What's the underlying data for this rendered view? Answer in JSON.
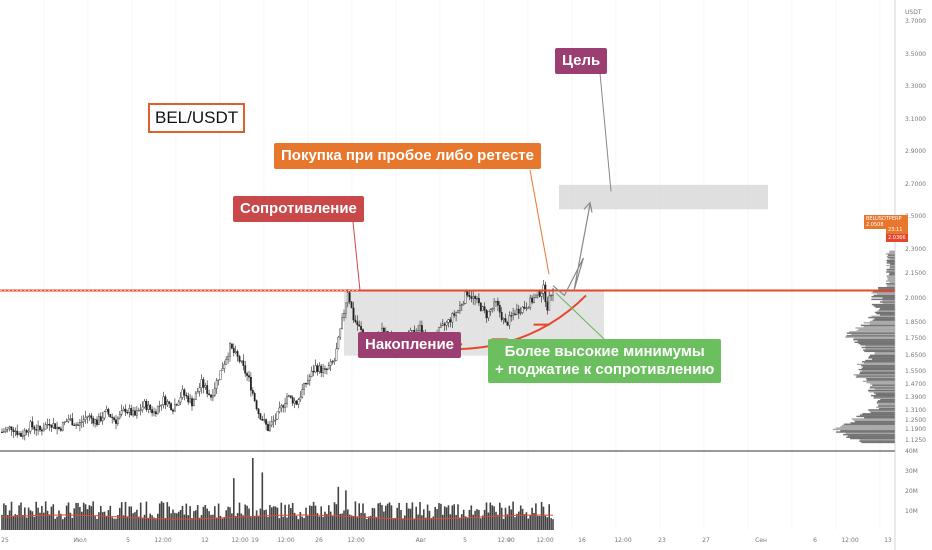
{
  "symbol": "BEL/USDT",
  "colors": {
    "resistance": "#c9494a",
    "buy": "#e8772e",
    "goal": "#9b3f72",
    "accumulation": "#9b3f72",
    "higher_lows": "#6cbf5f",
    "zone": "#d9d9d9",
    "price_line": "#e8462a"
  },
  "annotations": {
    "resistance": "Сопротивление",
    "buy": "Покупка при пробое либо ретесте",
    "goal": "Цель",
    "accumulation": "Накопление",
    "higher_lows_1": "Более высокие минимумы",
    "higher_lows_2": "+ поджатие к сопротивлению"
  },
  "price_axis": [
    "3.7000",
    "3.5000",
    "3.3000",
    "3.1000",
    "2.9000",
    "2.7000",
    "2.5000",
    "2.3000",
    "2.1500",
    "2.0000",
    "1.8500",
    "1.7500",
    "1.6500",
    "1.5500",
    "1.4700",
    "1.3900",
    "1.3100",
    "1.2500",
    "1.1900",
    "1.1250"
  ],
  "price_axis_top": "USDT",
  "price_tag": {
    "symbol": "BELUSDTPERP",
    "price": "2.0508",
    "countdown": "23:11",
    "low": "2.0366"
  },
  "volume_axis": [
    "40M",
    "30M",
    "20M",
    "10M"
  ],
  "time_axis": [
    "25",
    "Июл",
    "5",
    "12:00",
    "12",
    "12:00",
    "19",
    "12:00",
    "26",
    "12:00",
    "Авг",
    "5",
    "12:00",
    "9",
    "12:00",
    "16",
    "12:00",
    "23",
    "27",
    "Сен",
    "6",
    "12:00",
    "13"
  ],
  "chart_data": {
    "type": "candlestick",
    "symbol": "BEL/USDT",
    "price_range": [
      1.1,
      3.8
    ],
    "last_price": 2.0508,
    "resistance_level": 2.05,
    "accumulation_zone": {
      "low": 1.65,
      "high": 2.05
    },
    "target_zone": {
      "low": 2.55,
      "high": 2.7
    },
    "close_path": [
      [
        0,
        1.18
      ],
      [
        5,
        1.21
      ],
      [
        10,
        1.16
      ],
      [
        15,
        1.22
      ],
      [
        20,
        1.19
      ],
      [
        25,
        1.24
      ],
      [
        30,
        1.2
      ],
      [
        35,
        1.26
      ],
      [
        40,
        1.22
      ],
      [
        45,
        1.28
      ],
      [
        50,
        1.24
      ],
      [
        55,
        1.3
      ],
      [
        60,
        1.25
      ],
      [
        65,
        1.32
      ],
      [
        70,
        1.28
      ],
      [
        75,
        1.35
      ],
      [
        80,
        1.3
      ],
      [
        85,
        1.38
      ],
      [
        90,
        1.33
      ],
      [
        95,
        1.42
      ],
      [
        100,
        1.36
      ],
      [
        105,
        1.48
      ],
      [
        110,
        1.4
      ],
      [
        115,
        1.55
      ],
      [
        120,
        1.7
      ],
      [
        125,
        1.62
      ],
      [
        130,
        1.5
      ],
      [
        135,
        1.3
      ],
      [
        140,
        1.2
      ],
      [
        145,
        1.28
      ],
      [
        150,
        1.4
      ],
      [
        155,
        1.36
      ],
      [
        160,
        1.48
      ],
      [
        165,
        1.58
      ],
      [
        170,
        1.55
      ],
      [
        175,
        1.62
      ],
      [
        180,
        1.92
      ],
      [
        182,
        2.05
      ],
      [
        185,
        1.88
      ],
      [
        190,
        1.78
      ],
      [
        195,
        1.72
      ],
      [
        200,
        1.8
      ],
      [
        205,
        1.75
      ],
      [
        210,
        1.7
      ],
      [
        215,
        1.78
      ],
      [
        220,
        1.82
      ],
      [
        225,
        1.74
      ],
      [
        230,
        1.8
      ],
      [
        235,
        1.86
      ],
      [
        240,
        1.93
      ],
      [
        245,
        2.04
      ],
      [
        250,
        1.98
      ],
      [
        255,
        1.9
      ],
      [
        260,
        1.97
      ],
      [
        265,
        1.84
      ],
      [
        270,
        1.92
      ],
      [
        275,
        1.95
      ],
      [
        280,
        2.0
      ],
      [
        285,
        2.06
      ],
      [
        287,
        1.95
      ],
      [
        290,
        2.08
      ]
    ],
    "projection": [
      [
        290,
        2.08
      ],
      [
        296,
        2.02
      ],
      [
        306,
        2.25
      ]
    ]
  }
}
